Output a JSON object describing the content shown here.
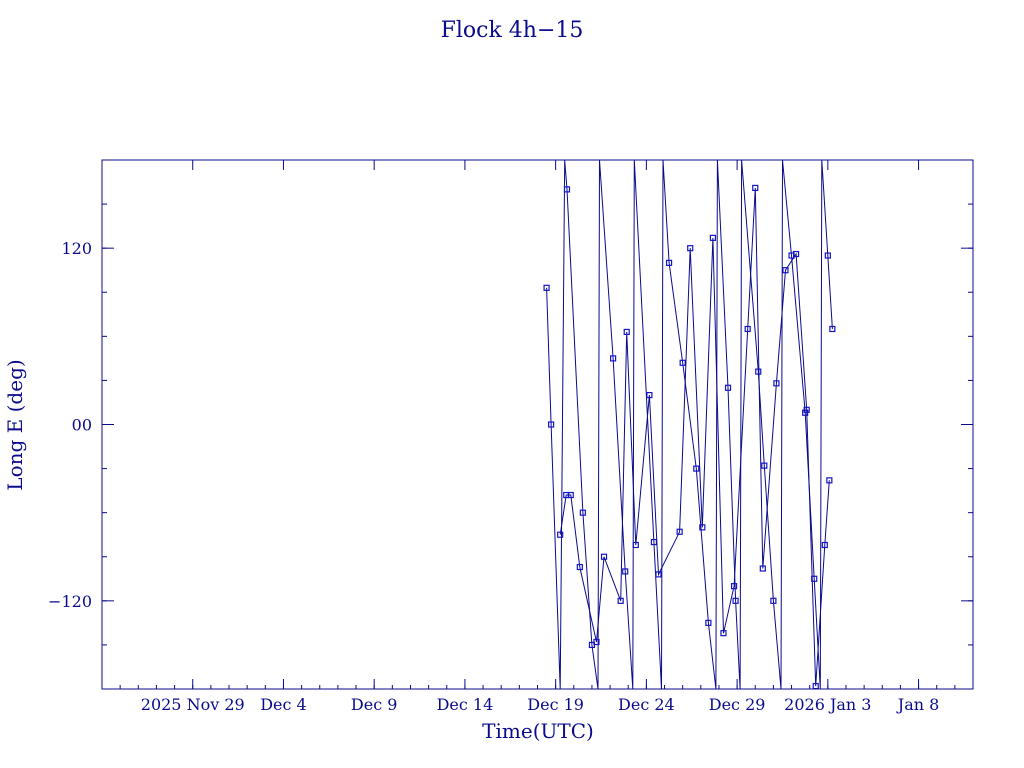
{
  "chart_data": {
    "type": "line",
    "title": "Flock 4h−15",
    "xlabel": "Time(UTC)",
    "ylabel": "Long E (deg)",
    "x_unit": "date",
    "xlim": [
      "2025-11-24",
      "2026-01-11"
    ],
    "ylim": [
      -180,
      180
    ],
    "x_ticks": [
      {
        "date": "2025-11-29",
        "label": "2025 Nov 29"
      },
      {
        "date": "2025-12-04",
        "label": "Dec  4"
      },
      {
        "date": "2025-12-09",
        "label": "Dec  9"
      },
      {
        "date": "2025-12-14",
        "label": "Dec 14"
      },
      {
        "date": "2025-12-19",
        "label": "Dec 19"
      },
      {
        "date": "2025-12-24",
        "label": "Dec 24"
      },
      {
        "date": "2025-12-29",
        "label": "Dec 29"
      },
      {
        "date": "2026-01-03",
        "label": "2026 Jan  3"
      },
      {
        "date": "2026-01-08",
        "label": "Jan  8"
      }
    ],
    "y_ticks": [
      {
        "value": 120,
        "label": "120"
      },
      {
        "value": 0,
        "label": "00"
      },
      {
        "value": -120,
        "label": "−120"
      }
    ],
    "grid": false,
    "legend": "none",
    "colors": {
      "line": "#0a0a8c",
      "marker": "#1515c8",
      "text": "#0a0a8c"
    },
    "series": [
      {
        "marker": "square",
        "points": [
          [
            "2025-12-18T12:00",
            93
          ],
          [
            "2025-12-18T18:00",
            0
          ],
          [
            "2025-12-19T06:00",
            -180
          ],
          [
            "2025-12-19T12:00",
            180
          ],
          [
            "2025-12-19T15:00",
            160
          ],
          [
            "2025-12-20T12:00",
            -60
          ],
          [
            "2025-12-21T00:00",
            -150
          ],
          [
            "2025-12-21T08:00",
            -180
          ],
          [
            "2025-12-21T10:00",
            180
          ],
          [
            "2025-12-22T04:00",
            45
          ],
          [
            "2025-12-22T20:00",
            -100
          ],
          [
            "2025-12-23T06:00",
            -180
          ],
          [
            "2025-12-23T08:00",
            180
          ],
          [
            "2025-12-24T10:00",
            -80
          ],
          [
            "2025-12-24T20:00",
            -180
          ],
          [
            "2025-12-24T22:00",
            180
          ],
          [
            "2025-12-25T06:00",
            110
          ],
          [
            "2025-12-26T00:00",
            42
          ],
          [
            "2025-12-26T18:00",
            -30
          ],
          [
            "2025-12-27T10:00",
            -135
          ],
          [
            "2025-12-27T20:00",
            -180
          ],
          [
            "2025-12-27T22:00",
            180
          ],
          [
            "2025-12-28T12:00",
            25
          ],
          [
            "2025-12-28T22:00",
            -120
          ],
          [
            "2025-12-29T04:00",
            -180
          ],
          [
            "2025-12-29T06:00",
            180
          ],
          [
            "2025-12-30T04:00",
            36
          ],
          [
            "2025-12-30T12:00",
            -28
          ],
          [
            "2025-12-31T00:00",
            -120
          ],
          [
            "2025-12-31T10:00",
            -180
          ],
          [
            "2025-12-31T12:00",
            180
          ],
          [
            "2026-01-01T00:00",
            115
          ],
          [
            "2026-01-01T18:00",
            8
          ],
          [
            "2026-01-02T06:00",
            -105
          ],
          [
            "2026-01-02T14:00",
            -180
          ],
          [
            "2026-01-02T16:00",
            180
          ],
          [
            "2026-01-03T00:00",
            115
          ],
          [
            "2026-01-03T06:00",
            65
          ]
        ]
      },
      {
        "marker": "square",
        "points": [
          [
            "2025-12-19T06:00",
            -75
          ],
          [
            "2025-12-19T14:00",
            -48
          ],
          [
            "2025-12-19T20:00",
            -48
          ],
          [
            "2025-12-20T08:00",
            -97
          ],
          [
            "2025-12-21T06:00",
            -148
          ],
          [
            "2025-12-21T16:00",
            -90
          ],
          [
            "2025-12-22T14:00",
            -120
          ],
          [
            "2025-12-22T22:00",
            63
          ],
          [
            "2025-12-23T10:00",
            -82
          ],
          [
            "2025-12-24T04:00",
            20
          ],
          [
            "2025-12-24T16:00",
            -102
          ],
          [
            "2025-12-25T20:00",
            -73
          ],
          [
            "2025-12-26T10:00",
            120
          ],
          [
            "2025-12-27T02:00",
            -70
          ],
          [
            "2025-12-27T16:00",
            127
          ],
          [
            "2025-12-28T06:00",
            -142
          ],
          [
            "2025-12-28T20:00",
            -110
          ],
          [
            "2025-12-29T14:00",
            65
          ],
          [
            "2025-12-30T00:00",
            161
          ],
          [
            "2025-12-30T10:00",
            -98
          ],
          [
            "2025-12-31T04:00",
            28
          ],
          [
            "2025-12-31T16:00",
            105
          ],
          [
            "2026-01-01T06:00",
            116
          ],
          [
            "2026-01-01T20:00",
            10
          ],
          [
            "2026-01-02T08:00",
            -178
          ],
          [
            "2026-01-02T20:00",
            -82
          ],
          [
            "2026-01-03T02:00",
            -38
          ]
        ]
      }
    ]
  }
}
